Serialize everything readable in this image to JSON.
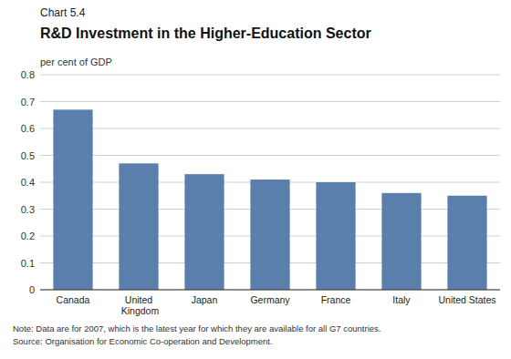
{
  "chart_data": {
    "type": "bar",
    "chart_label": "Chart 5.4",
    "title": "R&D Investment in the Higher-Education Sector",
    "ylabel": "per cent of GDP",
    "categories": [
      "Canada",
      "United Kingdom",
      "Japan",
      "Germany",
      "France",
      "Italy",
      "United States"
    ],
    "values": [
      0.67,
      0.47,
      0.43,
      0.41,
      0.4,
      0.36,
      0.35
    ],
    "color": "#5b7fad",
    "ylim": [
      0,
      0.8
    ],
    "yticks": [
      0,
      0.1,
      0.2,
      0.3,
      0.4,
      0.5,
      0.6,
      0.7,
      0.8
    ],
    "grid": true,
    "notes": [
      "Note: Data are for 2007, which is the latest year for which they are available for all G7 countries.",
      "Source: Organisation for Economic Co-operation and Development."
    ]
  }
}
